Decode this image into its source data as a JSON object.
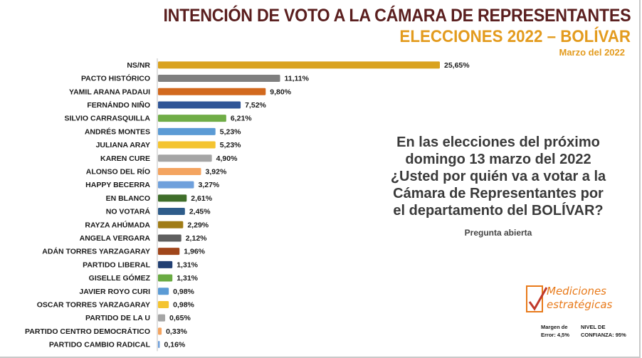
{
  "header": {
    "title": "INTENCIÓN DE VOTO A LA CÁMARA DE REPRESENTANTES",
    "subtitle": "ELECCIONES 2022 – BOLÍVAR",
    "date": "Marzo del 2022"
  },
  "question": {
    "lines": [
      "En las elecciones del próximo",
      "domingo 13 marzo del 2022",
      "¿Usted por quién va a votar a la",
      "Cámara de Representantes por",
      "el departamento del BOLÍVAR?"
    ],
    "note": "Pregunta abierta"
  },
  "logo": {
    "line1": "Mediciones",
    "line2": "estratégicas"
  },
  "footer": {
    "margin_line1": "Margen de",
    "margin_line2": "Error: 4,5%",
    "confidence_line1": "NIVEL DE",
    "confidence_line2": "CONFIANZA: 95%"
  },
  "colors": {
    "title": "#5a1e1e",
    "accent": "#e39b1e",
    "logo": "#e87a1a"
  },
  "chart_data": {
    "type": "bar",
    "orientation": "horizontal",
    "categories": [
      "NS/NR",
      "PACTO HISTÓRICO",
      "YAMIL ARANA PADAUI",
      "FERNÁNDO NIÑO",
      "SILVIO CARRASQUILLA",
      "ANDRÉS MONTES",
      "JULIANA ARAY",
      "KAREN CURE",
      "ALONSO DEL RÍO",
      "HAPPY BECERRA",
      "EN BLANCO",
      "NO VOTARÁ",
      "RAYZA AHÚMADA",
      "ANGELA VERGARA",
      "ADÁN TORRES YARZAGARAY",
      "PARTIDO LIBERAL",
      "GISELLE GÓMEZ",
      "JAVIER ROYO CURI",
      "OSCAR TORRES YARZAGARAY",
      "PARTIDO DE LA U",
      "PARTIDO CENTRO DEMOCRÁTICO",
      "PARTIDO CAMBIO RADICAL"
    ],
    "values": [
      25.65,
      11.11,
      9.8,
      7.52,
      6.21,
      5.23,
      5.23,
      4.9,
      3.92,
      3.27,
      2.61,
      2.45,
      2.29,
      2.12,
      1.96,
      1.31,
      1.31,
      0.98,
      0.98,
      0.65,
      0.33,
      0.16
    ],
    "value_labels": [
      "25,65%",
      "11,11%",
      "9,80%",
      "7,52%",
      "6,21%",
      "5,23%",
      "5,23%",
      "4,90%",
      "3,92%",
      "3,27%",
      "2,61%",
      "2,45%",
      "2,29%",
      "2,12%",
      "1,96%",
      "1,31%",
      "1,31%",
      "0,98%",
      "0,98%",
      "0,65%",
      "0,33%",
      "0,16%"
    ],
    "colors": [
      "#d9a21f",
      "#7f7f7f",
      "#d2691e",
      "#2f5597",
      "#70ad47",
      "#5b9bd5",
      "#f4c430",
      "#a5a5a5",
      "#f4a460",
      "#6fa0dc",
      "#3f6e2a",
      "#2e5c8a",
      "#a07c16",
      "#5f5f5f",
      "#a0461b",
      "#213f73",
      "#6aab43",
      "#5b9bd5",
      "#f4c430",
      "#a5a5a5",
      "#f4a460",
      "#6fa0dc"
    ],
    "xlim": [
      0,
      25.65
    ],
    "grid": false,
    "legend": "none"
  }
}
